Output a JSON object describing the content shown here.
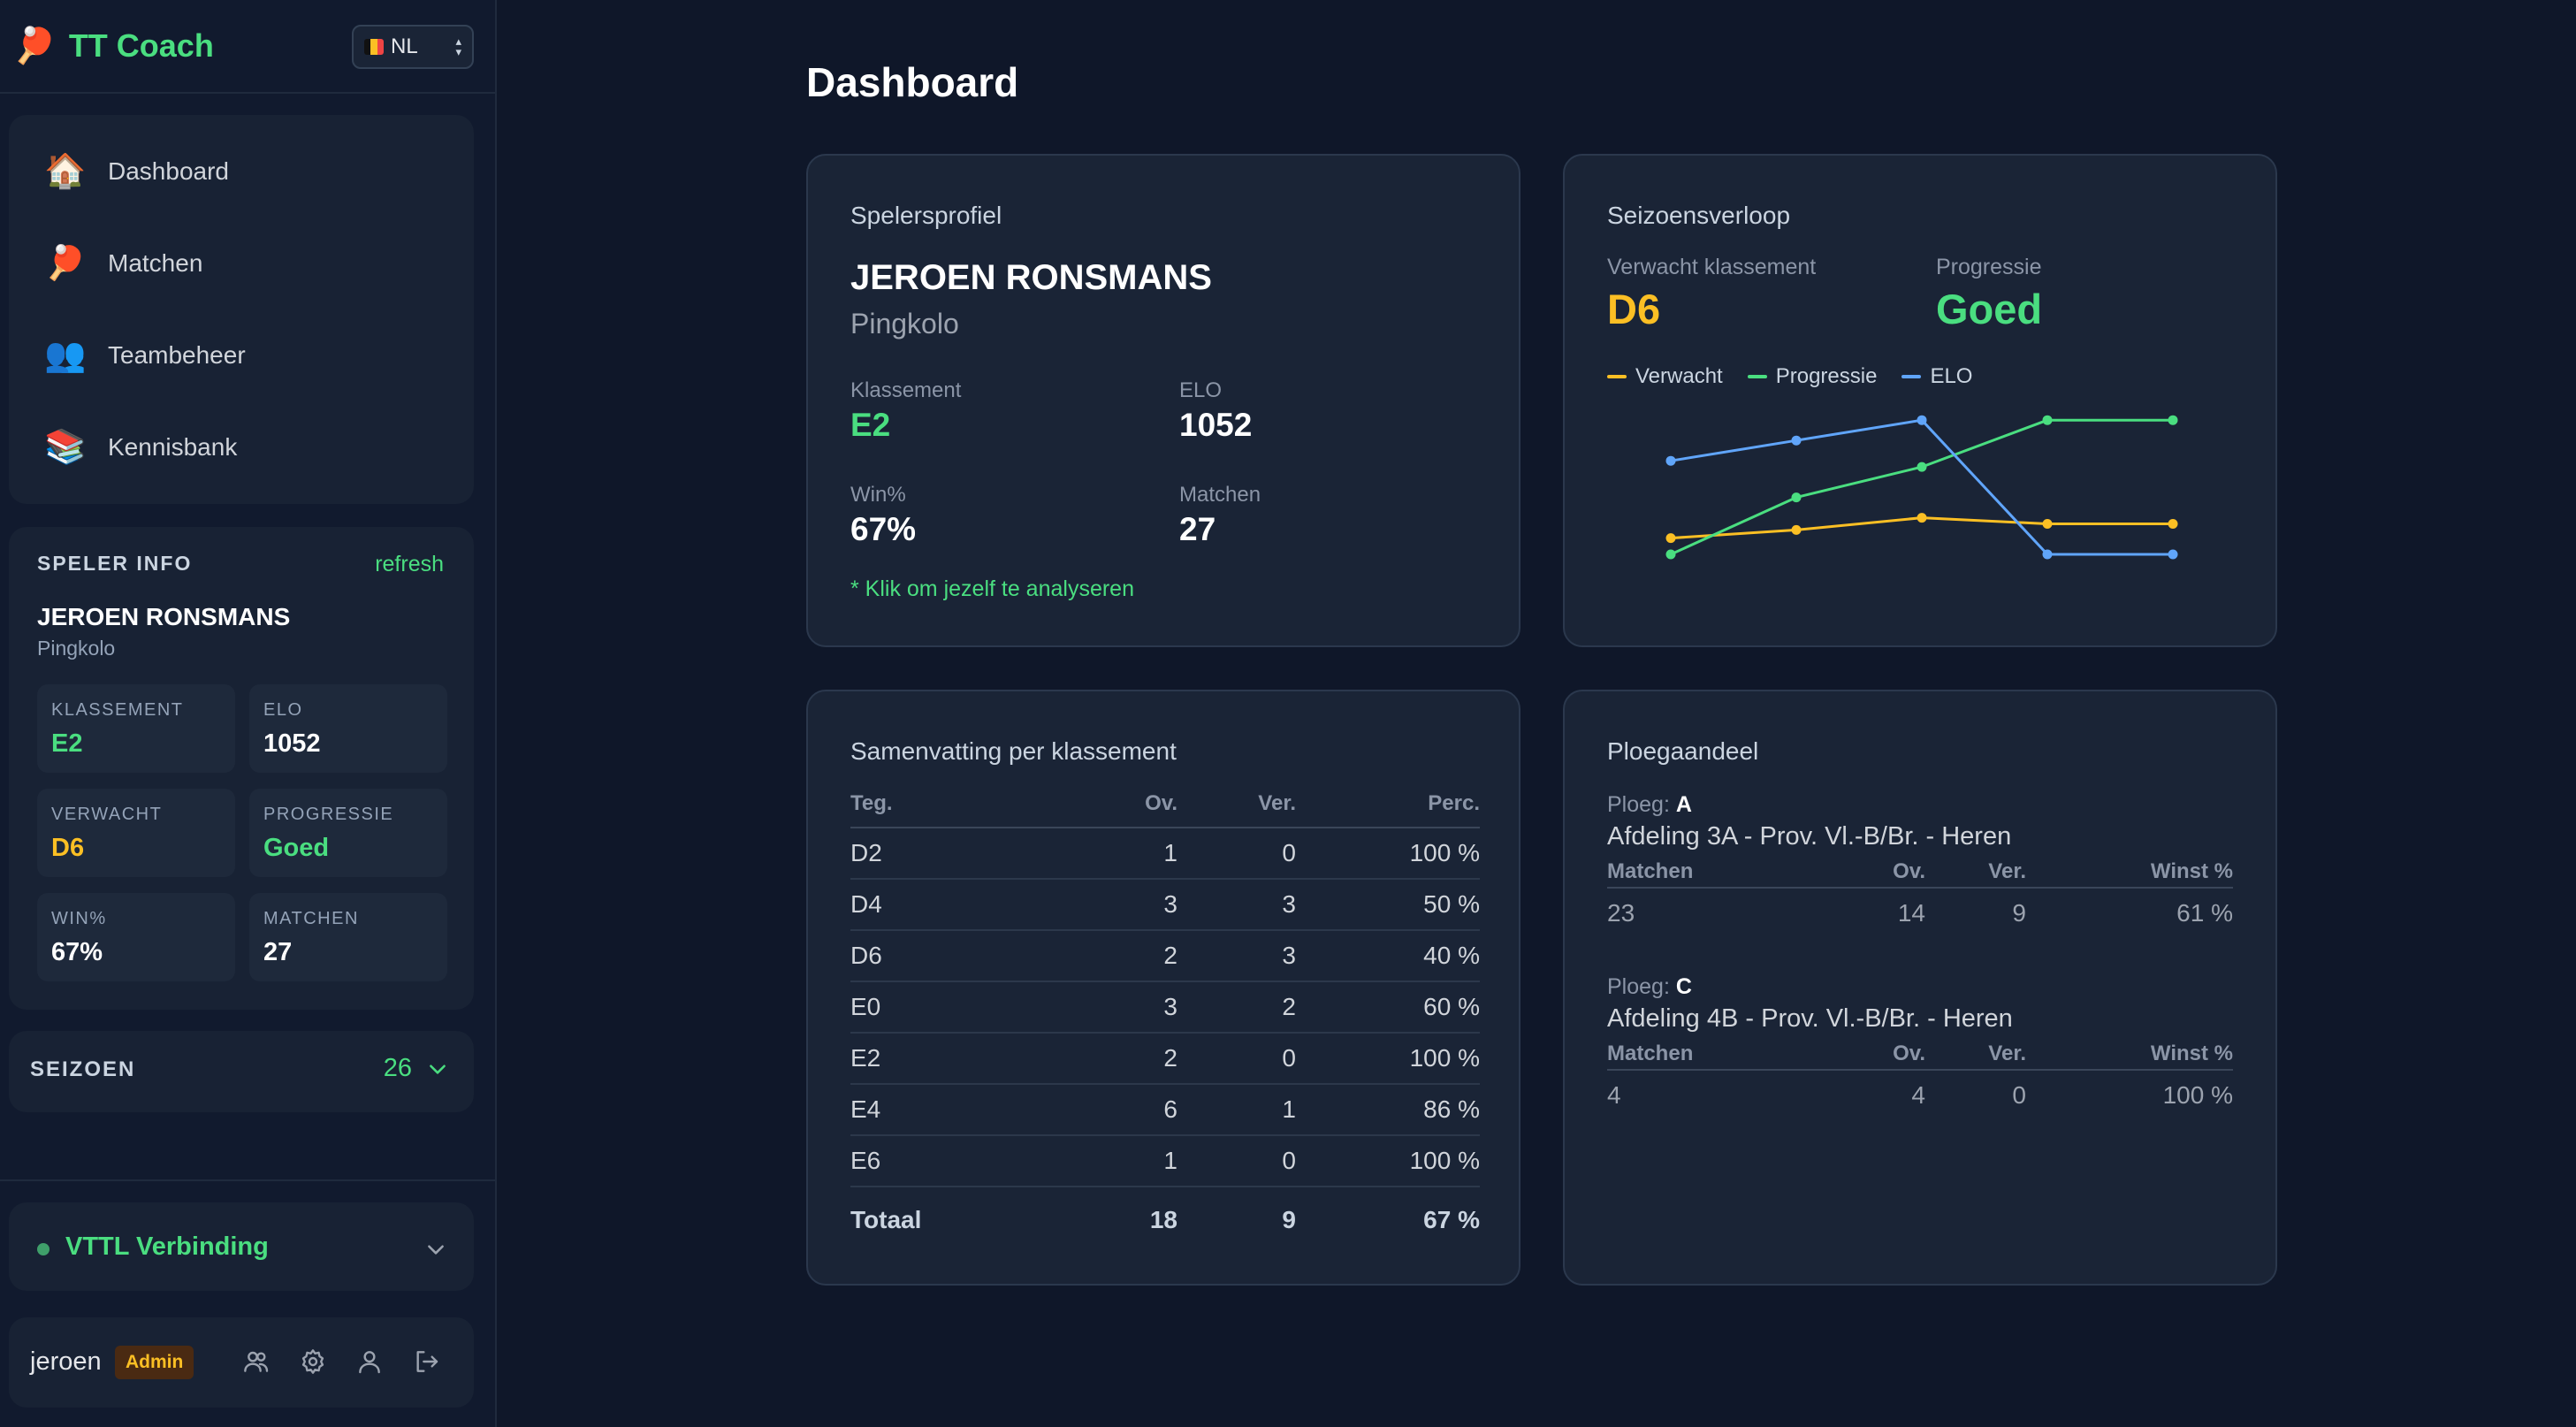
{
  "app": {
    "logo_icon": "ping-pong-paddle-icon",
    "name": "TT Coach"
  },
  "language": {
    "selected": "NL",
    "flag_icon": "belgium-flag-icon"
  },
  "nav": {
    "items": [
      {
        "label": "Dashboard",
        "icon": "house-icon"
      },
      {
        "label": "Matchen",
        "icon": "ping-pong-icon"
      },
      {
        "label": "Teambeheer",
        "icon": "people-icon"
      },
      {
        "label": "Kennisbank",
        "icon": "books-icon"
      }
    ]
  },
  "player_info": {
    "title": "SPELER INFO",
    "refresh": "refresh",
    "name": "JEROEN RONSMANS",
    "club": "Pingkolo",
    "tiles": [
      {
        "label": "KLASSEMENT",
        "value": "E2",
        "color": "#4ade80"
      },
      {
        "label": "ELO",
        "value": "1052",
        "color": "#ffffff"
      },
      {
        "label": "VERWACHT",
        "value": "D6",
        "color": "#fbbf24"
      },
      {
        "label": "PROGRESSIE",
        "value": "Goed",
        "color": "#4ade80"
      },
      {
        "label": "WIN%",
        "value": "67%",
        "color": "#ffffff"
      },
      {
        "label": "MATCHEN",
        "value": "27",
        "color": "#ffffff"
      }
    ]
  },
  "season": {
    "label": "SEIZOEN",
    "value": "26"
  },
  "connection": {
    "label": "VTTL Verbinding"
  },
  "user": {
    "name": "jeroen",
    "role": "Admin"
  },
  "page": {
    "title": "Dashboard"
  },
  "profile": {
    "title": "Spelersprofiel",
    "name": "JEROEN RONSMANS",
    "club": "Pingkolo",
    "klassement_label": "Klassement",
    "klassement": "E2",
    "elo_label": "ELO",
    "elo": "1052",
    "win_label": "Win%",
    "win": "67%",
    "matchen_label": "Matchen",
    "matchen": "27",
    "hint": "* Klik om jezelf te analyseren"
  },
  "season_progress": {
    "title": "Seizoensverloop",
    "expected_label": "Verwacht klassement",
    "expected": "D6",
    "progress_label": "Progressie",
    "progress": "Goed"
  },
  "chart_data": {
    "type": "line",
    "x": [
      1,
      2,
      3,
      4,
      5
    ],
    "ylim": [
      0,
      1
    ],
    "grid": false,
    "legend": "top-left",
    "series": [
      {
        "name": "Verwacht",
        "color": "#fbbf24",
        "values": [
          0.38,
          0.42,
          0.48,
          0.45,
          0.45
        ]
      },
      {
        "name": "Progressie",
        "color": "#4ade80",
        "values": [
          0.3,
          0.58,
          0.73,
          0.96,
          0.96
        ]
      },
      {
        "name": "ELO",
        "color": "#60a5fa",
        "values": [
          0.76,
          0.86,
          0.96,
          0.3,
          0.3
        ]
      }
    ]
  },
  "summary": {
    "title": "Samenvatting per klassement",
    "headers": [
      "Teg.",
      "Ov.",
      "Ver.",
      "Perc."
    ],
    "rows": [
      [
        "D2",
        "1",
        "0",
        "100 %"
      ],
      [
        "D4",
        "3",
        "3",
        "50 %"
      ],
      [
        "D6",
        "2",
        "3",
        "40 %"
      ],
      [
        "E0",
        "3",
        "2",
        "60 %"
      ],
      [
        "E2",
        "2",
        "0",
        "100 %"
      ],
      [
        "E4",
        "6",
        "1",
        "86 %"
      ],
      [
        "E6",
        "1",
        "0",
        "100 %"
      ]
    ],
    "total": [
      "Totaal",
      "18",
      "9",
      "67 %"
    ]
  },
  "teams": {
    "title": "Ploegaandeel",
    "ploeg_label": "Ploeg:",
    "headers": [
      "Matchen",
      "Ov.",
      "Ver.",
      "Winst %"
    ],
    "items": [
      {
        "ploeg": "A",
        "division": "Afdeling 3A - Prov. Vl.-B/Br. - Heren",
        "row": [
          "23",
          "14",
          "9",
          "61 %"
        ]
      },
      {
        "ploeg": "C",
        "division": "Afdeling 4B - Prov. Vl.-B/Br. - Heren",
        "row": [
          "4",
          "4",
          "0",
          "100 %"
        ]
      }
    ]
  }
}
